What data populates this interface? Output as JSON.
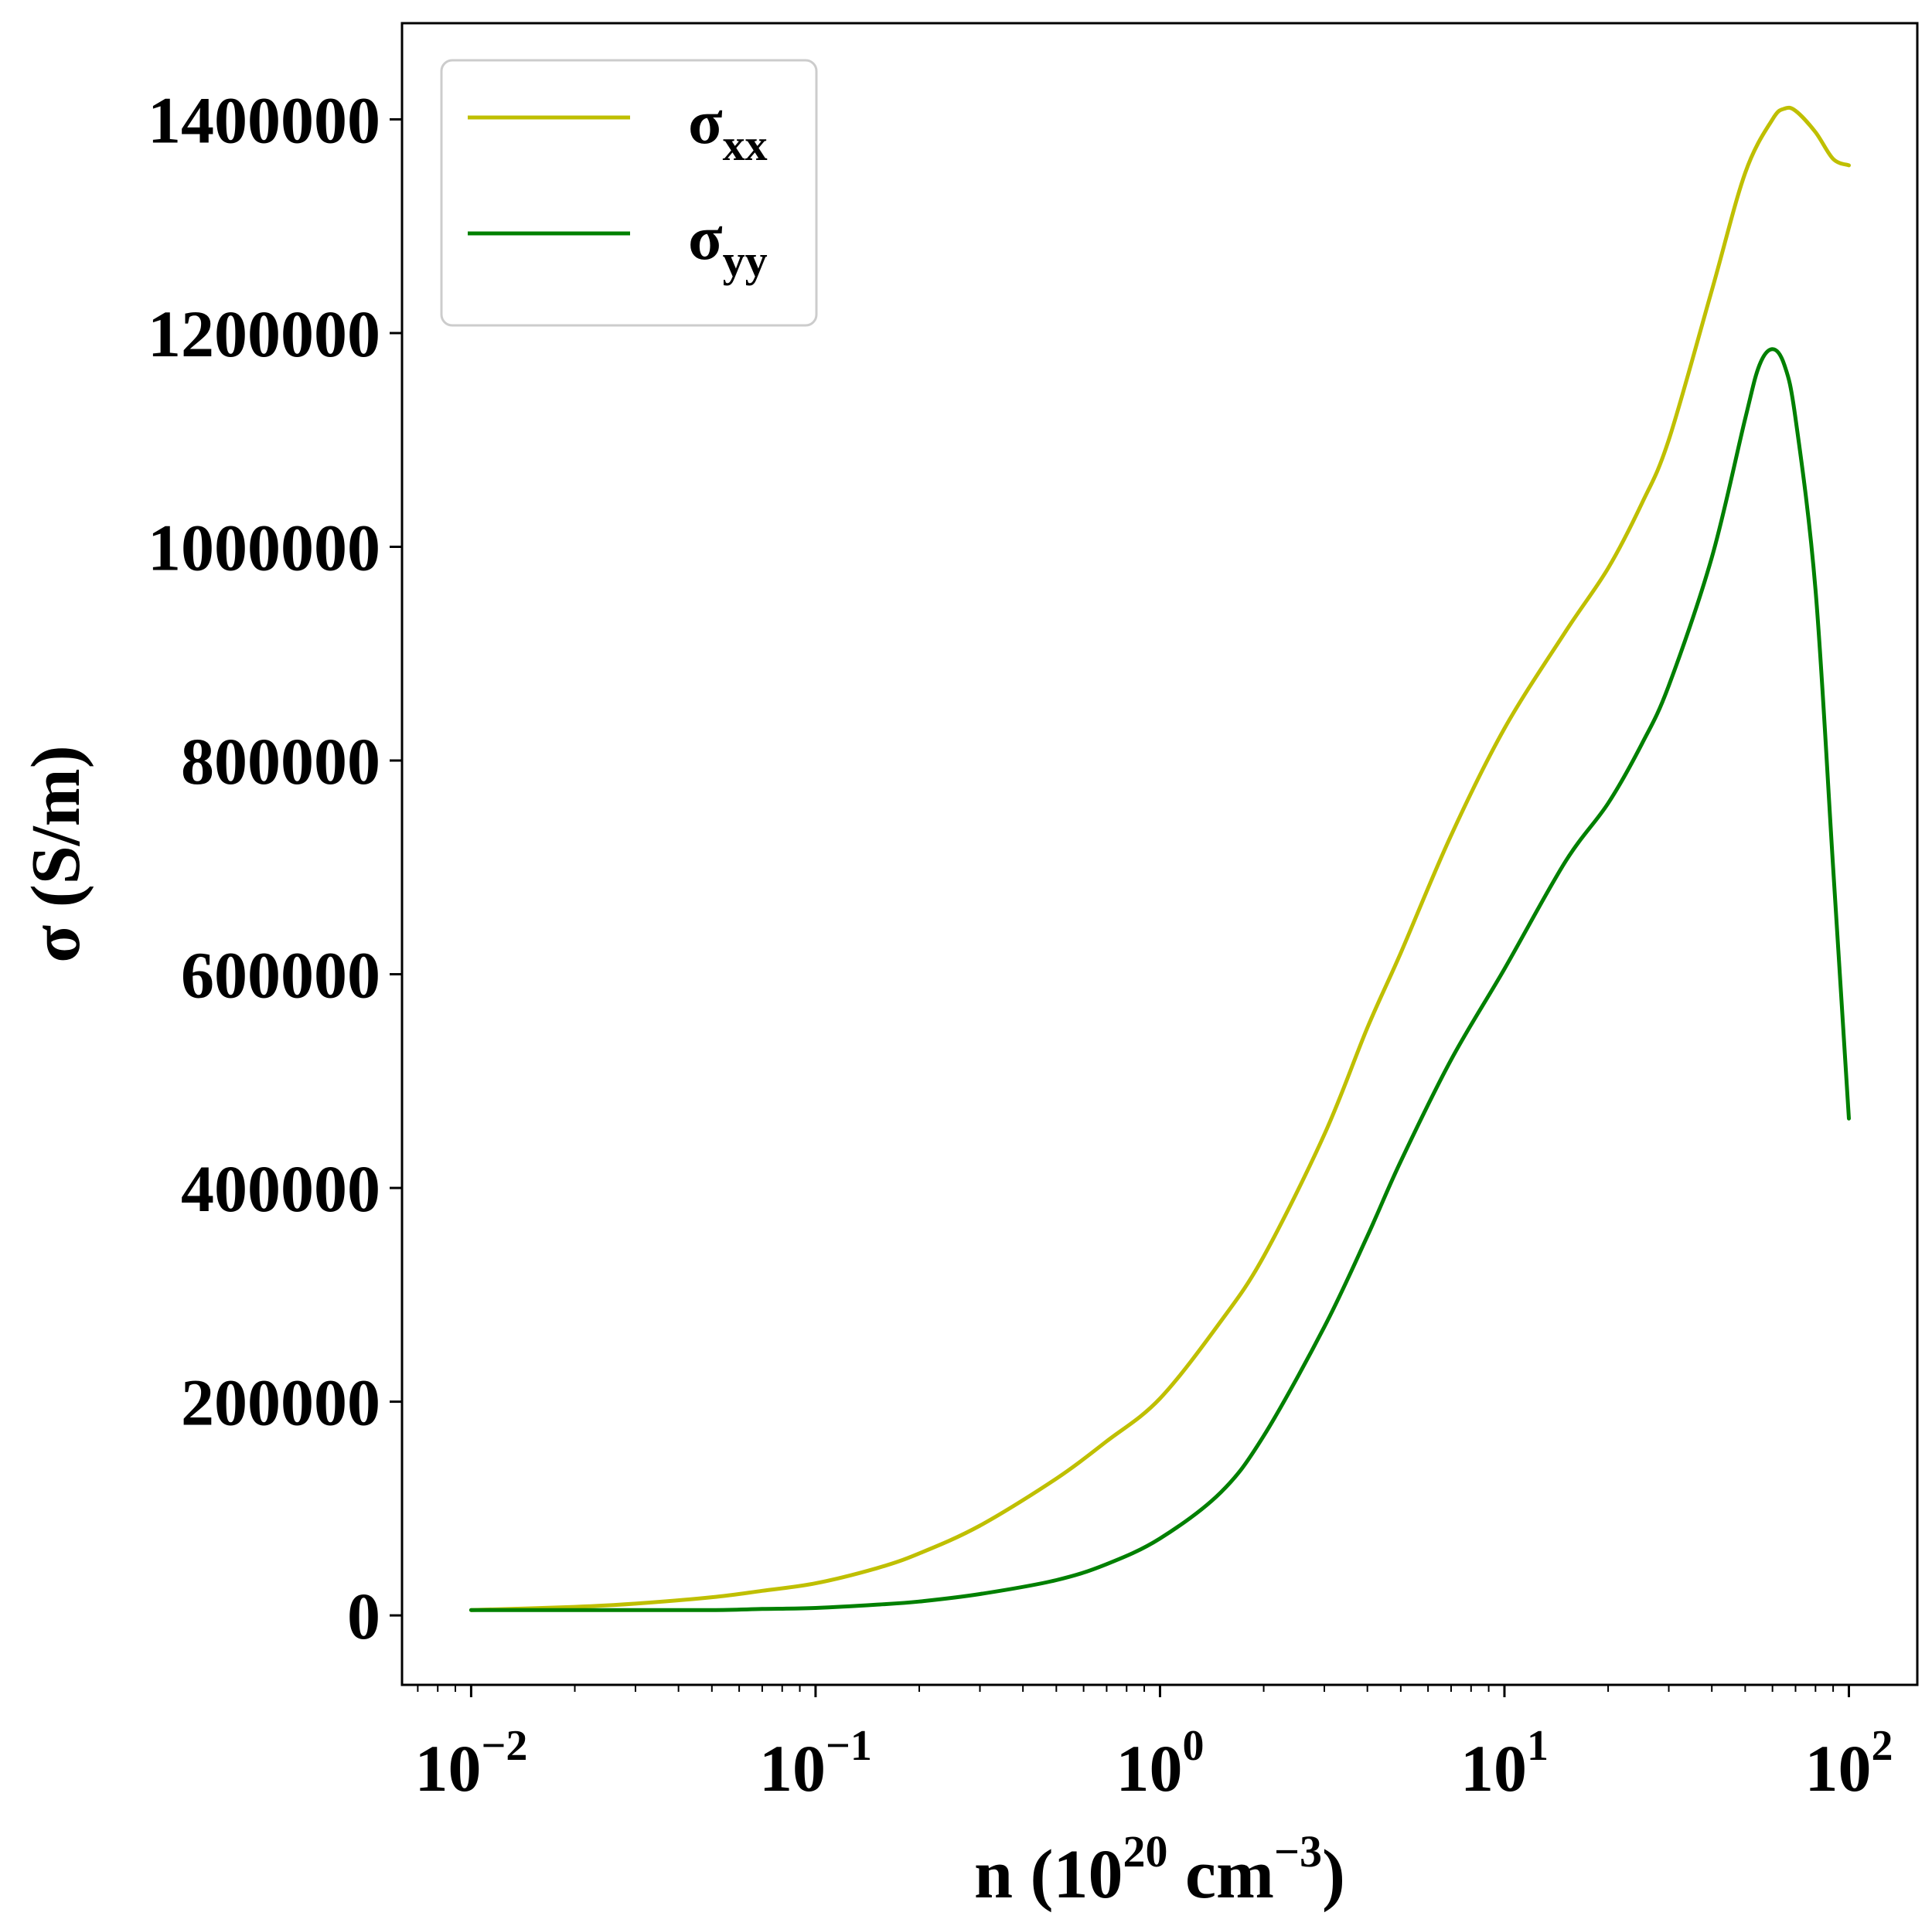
{
  "chart_data": {
    "type": "line",
    "xlabel": "n (10^20 cm^-3)",
    "xlabel_parts": {
      "main": "n (10",
      "exp1": "20",
      "mid": " cm",
      "exp2": "−3",
      "end": ")"
    },
    "ylabel": "σ (S/m)",
    "xscale": "log",
    "xlim": [
      0.0063,
      158
    ],
    "ylim": [
      -65000,
      1490000
    ],
    "xticks": [
      {
        "value": 0.01,
        "base": "10",
        "exp": "−2"
      },
      {
        "value": 0.1,
        "base": "10",
        "exp": "−1"
      },
      {
        "value": 1,
        "base": "10",
        "exp": "0"
      },
      {
        "value": 10,
        "base": "10",
        "exp": "1"
      },
      {
        "value": 100,
        "base": "10",
        "exp": "2"
      }
    ],
    "yticks": [
      {
        "value": 0,
        "label": "0"
      },
      {
        "value": 200000,
        "label": "200000"
      },
      {
        "value": 400000,
        "label": "400000"
      },
      {
        "value": 600000,
        "label": "600000"
      },
      {
        "value": 800000,
        "label": "800000"
      },
      {
        "value": 1000000,
        "label": "1000000"
      },
      {
        "value": 1200000,
        "label": "1200000"
      },
      {
        "value": 1400000,
        "label": "1400000"
      }
    ],
    "grid": false,
    "legend_position": "top-left",
    "series": [
      {
        "name": "σxx",
        "name_main": "σ",
        "name_sub": "xx",
        "color": "#bfbf00",
        "x": [
          0.01,
          0.02,
          0.03,
          0.05,
          0.07,
          0.1,
          0.15,
          0.2,
          0.3,
          0.5,
          0.7,
          1,
          1.5,
          2,
          3,
          4,
          5,
          7,
          10,
          15,
          20,
          25,
          30,
          40,
          50,
          60,
          65,
          70,
          80,
          90,
          100
        ],
        "y": [
          5000,
          8000,
          11000,
          17000,
          23000,
          30000,
          44000,
          58000,
          84000,
          128000,
          163000,
          203000,
          275000,
          336000,
          450000,
          550000,
          620000,
          730000,
          830000,
          920000,
          980000,
          1040000,
          1100000,
          1240000,
          1350000,
          1400000,
          1410000,
          1408000,
          1388000,
          1363000,
          1357000
        ]
      },
      {
        "name": "σyy",
        "name_main": "σ",
        "name_sub": "yy",
        "color": "#008000",
        "x": [
          0.01,
          0.02,
          0.03,
          0.05,
          0.07,
          0.1,
          0.15,
          0.2,
          0.3,
          0.5,
          0.7,
          1,
          1.5,
          2,
          3,
          4,
          5,
          7,
          10,
          15,
          20,
          25,
          30,
          40,
          50,
          55,
          60,
          65,
          70,
          80,
          90,
          100
        ],
        "y": [
          5000,
          5000,
          5000,
          5000,
          6000,
          7000,
          10000,
          13000,
          20000,
          33000,
          48000,
          72000,
          115000,
          168000,
          270000,
          355000,
          425000,
          520000,
          605000,
          705000,
          760000,
          815000,
          870000,
          990000,
          1120000,
          1170000,
          1185000,
          1170000,
          1120000,
          960000,
          700000,
          465000
        ]
      }
    ]
  }
}
